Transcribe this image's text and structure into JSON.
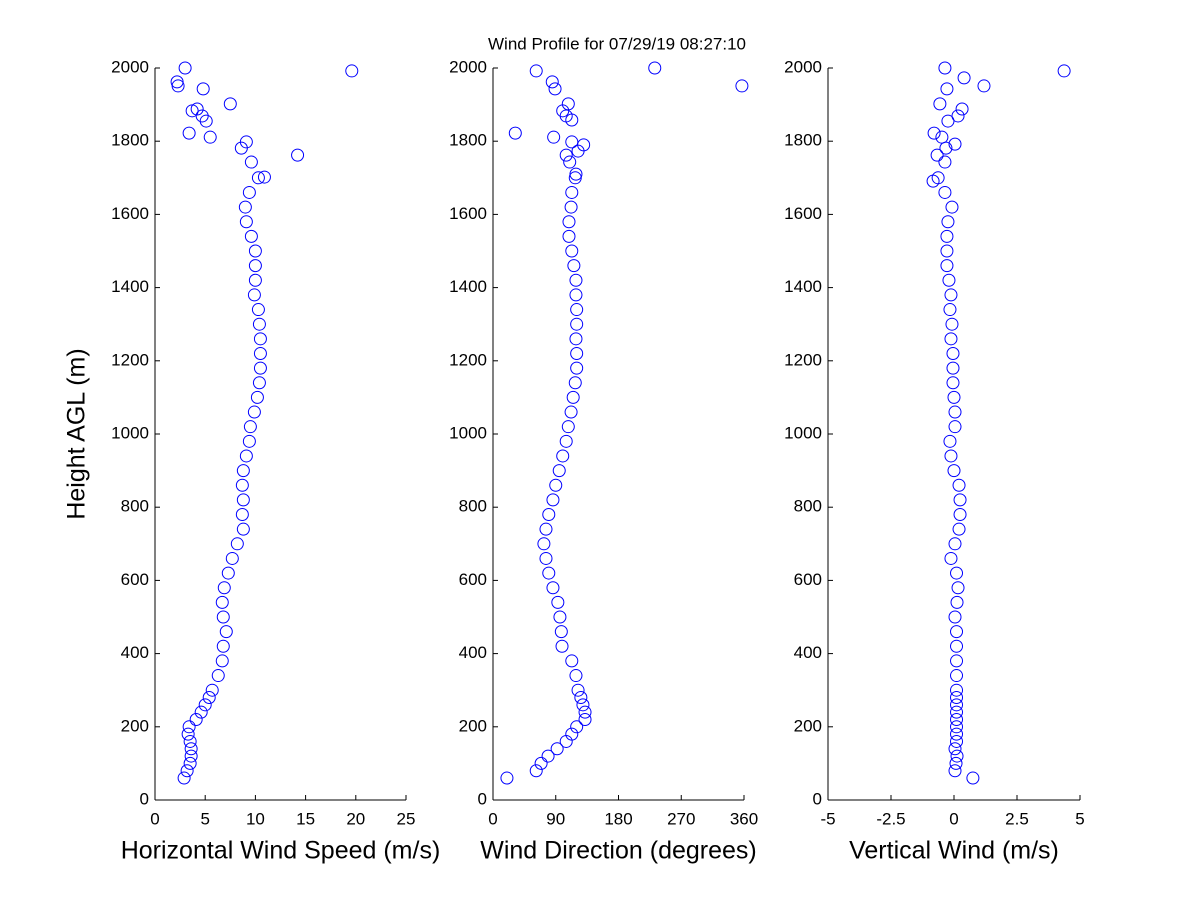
{
  "title": "Wind Profile for  07/29/19 08:27:10",
  "chart_data": [
    {
      "type": "scatter",
      "x_label": "Horizontal Wind Speed (m/s)",
      "y_label": "Height AGL (m)",
      "xlim": [
        0,
        25
      ],
      "xticks": [
        0,
        5,
        10,
        15,
        20,
        25
      ],
      "ylim": [
        0,
        2000
      ],
      "yticks": [
        0,
        200,
        400,
        600,
        800,
        1000,
        1200,
        1400,
        1600,
        1800,
        2000
      ],
      "color": "#0000ff",
      "x": [
        2.9,
        3.2,
        3.5,
        3.6,
        3.6,
        3.5,
        3.3,
        3.4,
        4.1,
        4.6,
        5.0,
        5.4,
        5.7,
        6.3,
        6.7,
        6.8,
        7.1,
        6.8,
        6.7,
        6.9,
        7.3,
        7.7,
        8.2,
        8.8,
        8.7,
        8.8,
        8.7,
        8.8,
        9.1,
        9.4,
        9.5,
        9.9,
        10.2,
        10.4,
        10.5,
        10.5,
        10.5,
        10.4,
        10.3,
        9.9,
        10.0,
        10.0,
        10.0,
        9.6,
        9.1,
        9.0,
        9.4,
        10.3,
        3.0,
        2.2,
        2.3,
        4.8,
        19.6,
        7.5,
        4.2,
        3.7,
        4.7,
        5.1,
        3.4,
        5.5,
        9.1,
        8.6,
        14.2,
        9.6,
        10.9
      ],
      "y": [
        60,
        80,
        100,
        120,
        140,
        160,
        180,
        200,
        220,
        240,
        260,
        280,
        300,
        340,
        380,
        420,
        460,
        500,
        540,
        580,
        620,
        660,
        700,
        740,
        780,
        820,
        860,
        900,
        940,
        980,
        1020,
        1060,
        1100,
        1140,
        1180,
        1220,
        1260,
        1300,
        1340,
        1380,
        1420,
        1460,
        1500,
        1540,
        1580,
        1620,
        1660,
        1700,
        2000,
        1962,
        1951,
        1943,
        1992,
        1902,
        1888,
        1883,
        1869,
        1855,
        1822,
        1811,
        1798,
        1781,
        1762,
        1743,
        1702
      ]
    },
    {
      "type": "scatter",
      "x_label": "Wind Direction (degrees)",
      "xlim": [
        0,
        360
      ],
      "xticks": [
        0,
        90,
        180,
        270,
        360
      ],
      "ylim": [
        0,
        2000
      ],
      "yticks": [
        0,
        200,
        400,
        600,
        800,
        1000,
        1200,
        1400,
        1600,
        1800,
        2000
      ],
      "color": "#0000ff",
      "x": [
        20,
        62,
        69,
        79,
        92,
        105,
        113,
        120,
        132,
        132,
        129,
        126,
        122,
        119,
        113,
        99,
        98,
        96,
        93,
        86,
        80,
        76,
        73,
        76,
        80,
        86,
        90,
        95,
        100,
        105,
        108,
        112,
        115,
        118,
        120,
        120,
        119,
        120,
        120,
        119,
        119,
        116,
        113,
        109,
        109,
        112,
        113,
        118,
        62,
        85,
        89,
        232,
        357,
        108,
        100,
        105,
        113,
        32,
        87,
        113,
        130,
        122,
        105,
        119,
        110
      ],
      "y": [
        60,
        80,
        100,
        120,
        140,
        160,
        180,
        200,
        220,
        240,
        260,
        280,
        300,
        340,
        380,
        420,
        460,
        500,
        540,
        580,
        620,
        660,
        700,
        740,
        780,
        820,
        860,
        900,
        940,
        980,
        1020,
        1060,
        1100,
        1140,
        1180,
        1220,
        1260,
        1300,
        1340,
        1380,
        1420,
        1460,
        1500,
        1540,
        1580,
        1620,
        1660,
        1700,
        1992,
        1962,
        1943,
        2000,
        1951,
        1902,
        1883,
        1869,
        1858,
        1822,
        1811,
        1798,
        1790,
        1773,
        1762,
        1710,
        1743
      ]
    },
    {
      "type": "scatter",
      "x_label": "Vertical Wind (m/s)",
      "xlim": [
        -5,
        5
      ],
      "xticks": [
        -5,
        -2.5,
        0,
        2.5,
        5
      ],
      "ylim": [
        0,
        2000
      ],
      "yticks": [
        0,
        200,
        400,
        600,
        800,
        1000,
        1200,
        1400,
        1600,
        1800,
        2000
      ],
      "color": "#0000ff",
      "x": [
        0.75,
        0.04,
        0.08,
        0.12,
        0.04,
        0.1,
        0.1,
        0.1,
        0.1,
        0.1,
        0.1,
        0.1,
        0.1,
        0.1,
        0.1,
        0.1,
        0.1,
        0.04,
        0.12,
        0.16,
        0.1,
        -0.12,
        0.04,
        0.2,
        0.24,
        0.24,
        0.2,
        0,
        -0.12,
        -0.16,
        0.04,
        0.04,
        0,
        -0.04,
        -0.04,
        -0.04,
        -0.12,
        -0.08,
        -0.16,
        -0.12,
        -0.2,
        -0.28,
        -0.28,
        -0.28,
        -0.24,
        -0.08,
        -0.36,
        -0.63,
        -0.36,
        4.37,
        0.4,
        1.19,
        -0.28,
        -0.56,
        0.32,
        0.16,
        -0.24,
        -0.79,
        -0.48,
        0.04,
        -0.32,
        -0.67,
        -0.36,
        -0.83
      ],
      "y": [
        60,
        80,
        100,
        120,
        140,
        160,
        180,
        200,
        220,
        240,
        260,
        280,
        300,
        340,
        380,
        420,
        460,
        500,
        540,
        580,
        620,
        660,
        700,
        740,
        780,
        820,
        860,
        900,
        940,
        980,
        1020,
        1060,
        1100,
        1140,
        1180,
        1220,
        1260,
        1300,
        1340,
        1380,
        1420,
        1460,
        1500,
        1540,
        1580,
        1620,
        1660,
        1700,
        2000,
        1992,
        1973,
        1951,
        1943,
        1902,
        1888,
        1869,
        1855,
        1822,
        1811,
        1792,
        1781,
        1762,
        1743,
        1691
      ]
    }
  ]
}
